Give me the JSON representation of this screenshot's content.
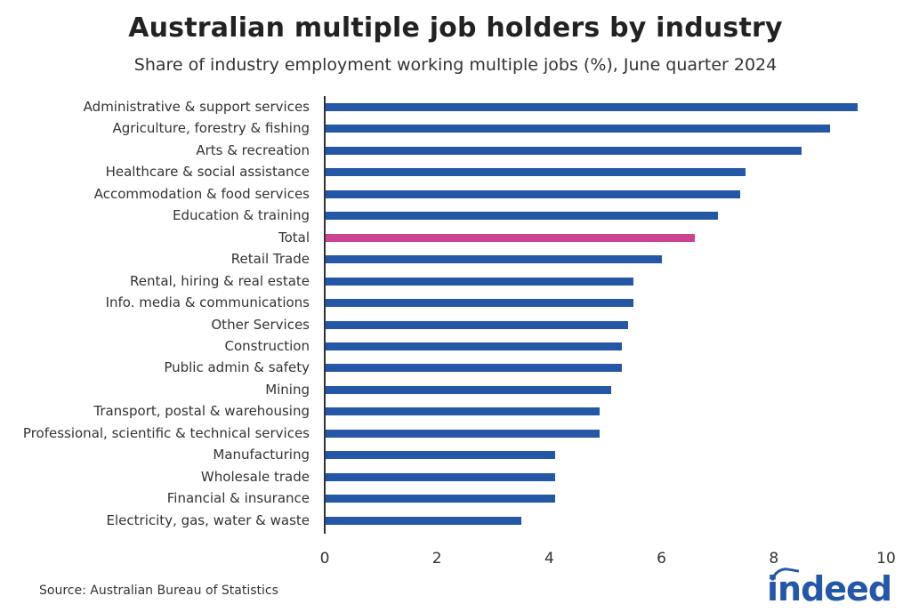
{
  "header": {
    "title": "Australian multiple job holders by industry",
    "subtitle": "Share of industry employment working multiple jobs (%), June quarter 2024"
  },
  "footer": {
    "source": "Source: Australian Bureau of Statistics",
    "logo": "indeed"
  },
  "colors": {
    "bar": "#2557a7",
    "highlight": "#cc4391"
  },
  "axis": {
    "ticks": [
      "0",
      "2",
      "4",
      "6",
      "8",
      "10"
    ]
  },
  "chart_data": {
    "type": "bar",
    "orientation": "horizontal",
    "title": "Australian multiple job holders by industry",
    "subtitle": "Share of industry employment working multiple jobs (%), June quarter 2024",
    "xlabel": "",
    "ylabel": "",
    "xlim": [
      0,
      10
    ],
    "xticks": [
      0,
      2,
      4,
      6,
      8,
      10
    ],
    "grid": false,
    "legend": null,
    "categories": [
      "Administrative & support services",
      "Agriculture, forestry & fishing",
      "Arts & recreation",
      "Healthcare & social assistance",
      "Accommodation & food services",
      "Education & training",
      "Total",
      "Retail Trade",
      "Rental, hiring & real estate",
      "Info. media & communications",
      "Other Services",
      "Construction",
      "Public admin & safety",
      "Mining",
      "Transport, postal & warehousing",
      "Professional, scientific & technical services",
      "Manufacturing",
      "Wholesale trade",
      "Financial & insurance",
      "Electricity, gas, water & waste"
    ],
    "values": [
      9.5,
      9.0,
      8.5,
      7.5,
      7.4,
      7.0,
      6.6,
      6.0,
      5.5,
      5.5,
      5.4,
      5.3,
      5.3,
      5.1,
      4.9,
      4.9,
      4.1,
      4.1,
      4.1,
      3.5
    ],
    "highlight": "Total",
    "source": "Source: Australian Bureau of Statistics"
  }
}
